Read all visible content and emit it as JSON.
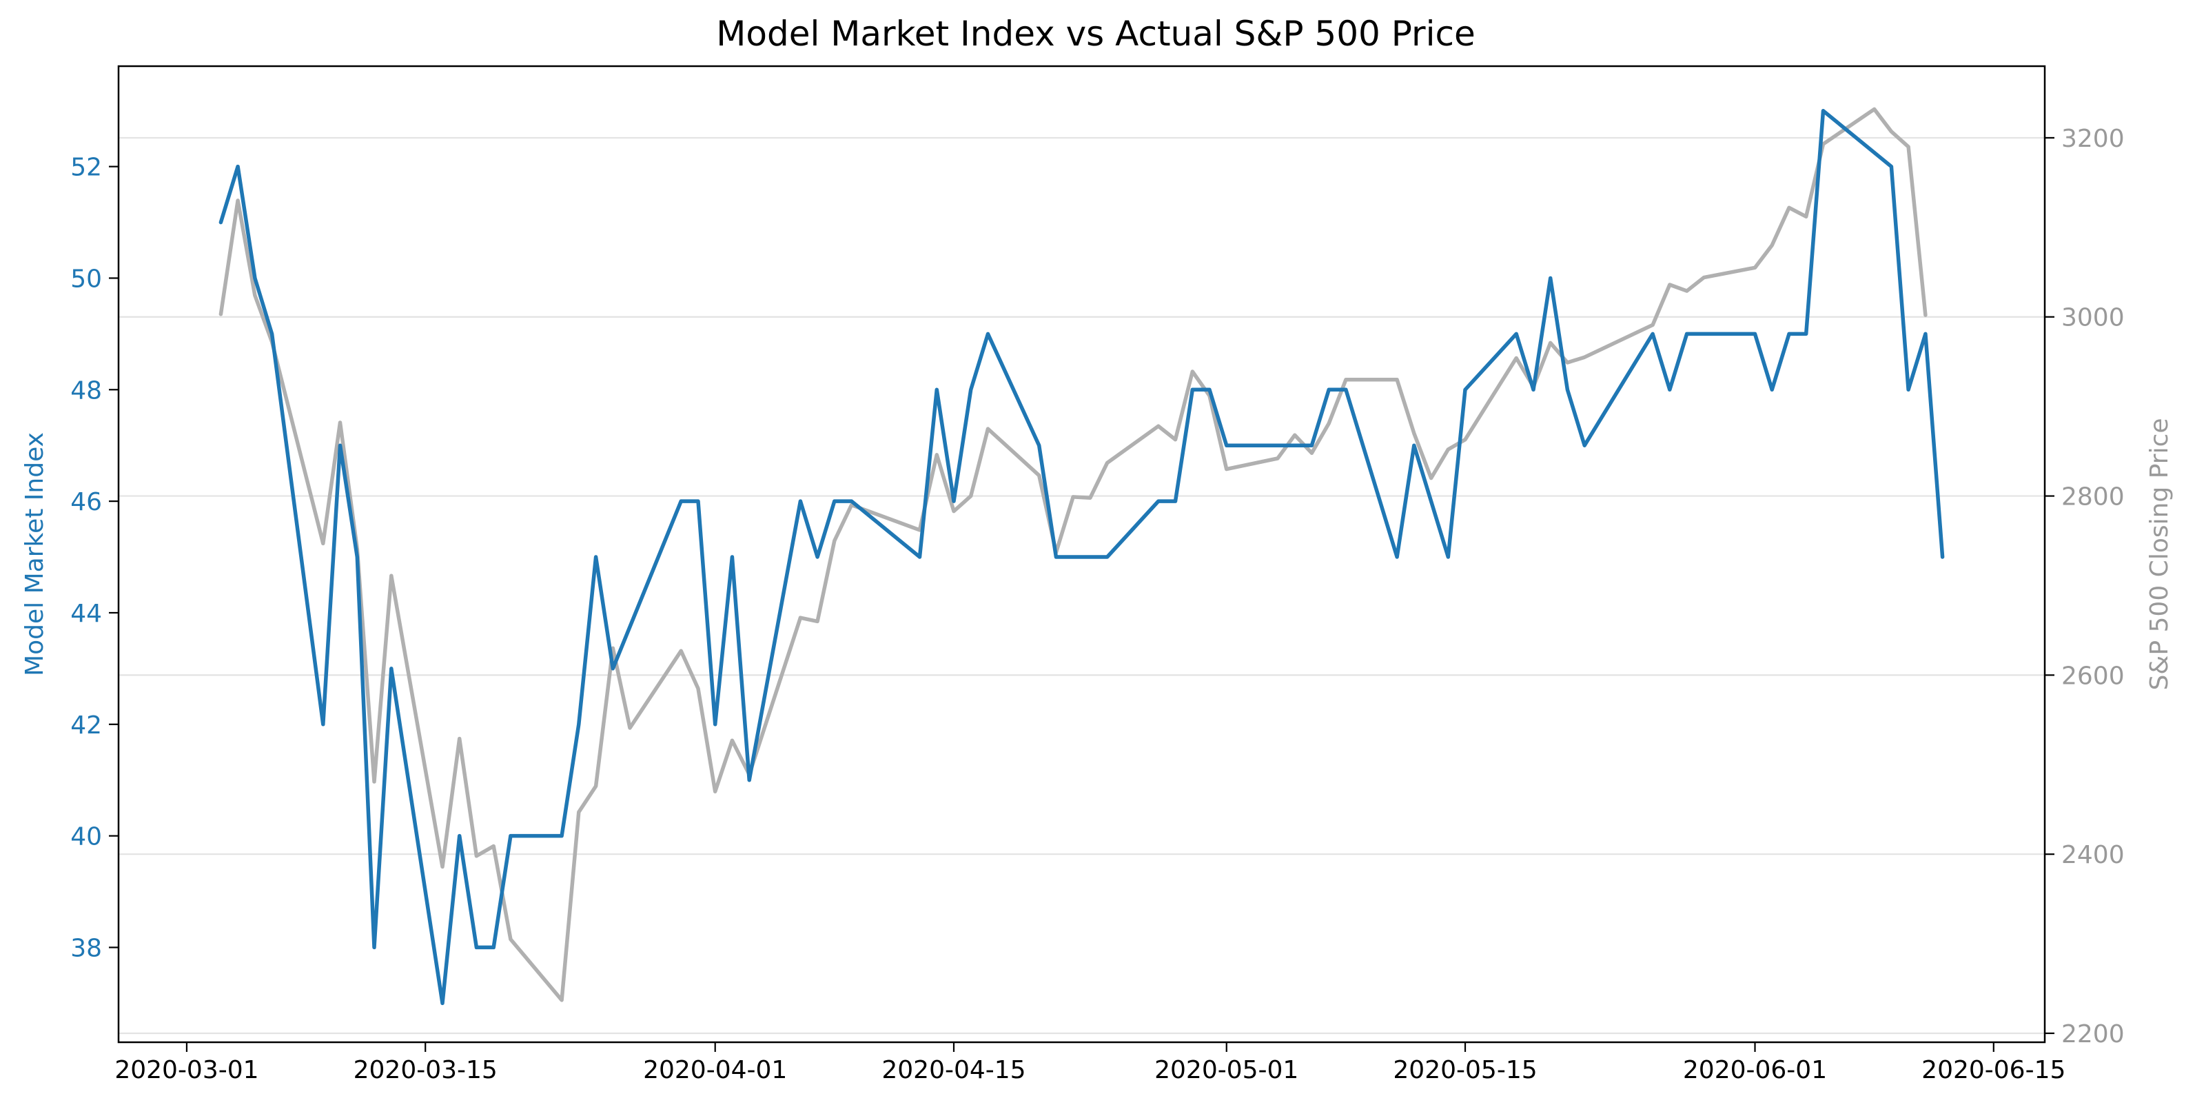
{
  "chart_data": {
    "type": "line",
    "title": "Model Market Index vs Actual S&P 500 Price",
    "xlabel": "",
    "x_tick_labels": [
      "2020-03-01",
      "2020-03-15",
      "2020-04-01",
      "2020-04-15",
      "2020-05-01",
      "2020-05-15",
      "2020-06-01",
      "2020-06-15"
    ],
    "xlim": [
      "2020-02-26",
      "2020-06-18"
    ],
    "y_left": {
      "label": "Model Market Index",
      "ylim": [
        36.3,
        53.8
      ],
      "ticks": [
        38,
        40,
        42,
        44,
        46,
        48,
        50,
        52
      ],
      "color": "#1f77b4"
    },
    "y_right": {
      "label": "S&P 500 Closing Price",
      "ylim": [
        2190,
        3280
      ],
      "ticks": [
        2200,
        2400,
        2600,
        2800,
        3000,
        3200
      ],
      "color": "#999999"
    },
    "grid": "horizontal, right axis ticks",
    "legend": "none",
    "series": [
      {
        "axis": "left",
        "color": "#1f77b4",
        "points": [
          [
            "2020-03-03",
            51
          ],
          [
            "2020-03-04",
            52
          ],
          [
            "2020-03-05",
            50
          ],
          [
            "2020-03-06",
            49
          ],
          [
            "2020-03-09",
            42
          ],
          [
            "2020-03-10",
            47
          ],
          [
            "2020-03-11",
            45
          ],
          [
            "2020-03-12",
            38
          ],
          [
            "2020-03-13",
            43
          ],
          [
            "2020-03-16",
            37
          ],
          [
            "2020-03-17",
            40
          ],
          [
            "2020-03-18",
            38
          ],
          [
            "2020-03-19",
            38
          ],
          [
            "2020-03-20",
            40
          ],
          [
            "2020-03-23",
            40
          ],
          [
            "2020-03-24",
            42
          ],
          [
            "2020-03-25",
            45
          ],
          [
            "2020-03-26",
            43
          ],
          [
            "2020-03-30",
            46
          ],
          [
            "2020-03-31",
            46
          ],
          [
            "2020-04-01",
            42
          ],
          [
            "2020-04-02",
            45
          ],
          [
            "2020-04-03",
            41
          ],
          [
            "2020-04-06",
            46
          ],
          [
            "2020-04-07",
            45
          ],
          [
            "2020-04-08",
            46
          ],
          [
            "2020-04-09",
            46
          ],
          [
            "2020-04-13",
            45
          ],
          [
            "2020-04-14",
            48
          ],
          [
            "2020-04-15",
            46
          ],
          [
            "2020-04-16",
            48
          ],
          [
            "2020-04-17",
            49
          ],
          [
            "2020-04-20",
            47
          ],
          [
            "2020-04-21",
            45
          ],
          [
            "2020-04-24",
            45
          ],
          [
            "2020-04-27",
            46
          ],
          [
            "2020-04-28",
            46
          ],
          [
            "2020-04-29",
            48
          ],
          [
            "2020-04-30",
            48
          ],
          [
            "2020-05-01",
            47
          ],
          [
            "2020-05-05",
            47
          ],
          [
            "2020-05-06",
            47
          ],
          [
            "2020-05-07",
            48
          ],
          [
            "2020-05-08",
            48
          ],
          [
            "2020-05-11",
            45
          ],
          [
            "2020-05-12",
            47
          ],
          [
            "2020-05-14",
            45
          ],
          [
            "2020-05-15",
            48
          ],
          [
            "2020-05-18",
            49
          ],
          [
            "2020-05-19",
            48
          ],
          [
            "2020-05-20",
            50
          ],
          [
            "2020-05-21",
            48
          ],
          [
            "2020-05-22",
            47
          ],
          [
            "2020-05-26",
            49
          ],
          [
            "2020-05-27",
            48
          ],
          [
            "2020-05-28",
            49
          ],
          [
            "2020-06-01",
            49
          ],
          [
            "2020-06-02",
            48
          ],
          [
            "2020-06-03",
            49
          ],
          [
            "2020-06-04",
            49
          ],
          [
            "2020-06-05",
            53
          ],
          [
            "2020-06-09",
            52
          ],
          [
            "2020-06-10",
            48
          ],
          [
            "2020-06-11",
            49
          ],
          [
            "2020-06-12",
            45
          ]
        ]
      },
      {
        "axis": "right",
        "color": "#b0b0b0",
        "points": [
          [
            "2020-03-03",
            3003
          ],
          [
            "2020-03-04",
            3130
          ],
          [
            "2020-03-05",
            3024
          ],
          [
            "2020-03-06",
            2972
          ],
          [
            "2020-03-09",
            2747
          ],
          [
            "2020-03-10",
            2882
          ],
          [
            "2020-03-11",
            2741
          ],
          [
            "2020-03-12",
            2481
          ],
          [
            "2020-03-13",
            2711
          ],
          [
            "2020-03-16",
            2386
          ],
          [
            "2020-03-17",
            2529
          ],
          [
            "2020-03-18",
            2398
          ],
          [
            "2020-03-19",
            2409
          ],
          [
            "2020-03-20",
            2305
          ],
          [
            "2020-03-23",
            2237
          ],
          [
            "2020-03-24",
            2447
          ],
          [
            "2020-03-25",
            2476
          ],
          [
            "2020-03-26",
            2630
          ],
          [
            "2020-03-27",
            2541
          ],
          [
            "2020-03-30",
            2627
          ],
          [
            "2020-03-31",
            2585
          ],
          [
            "2020-04-01",
            2470
          ],
          [
            "2020-04-02",
            2527
          ],
          [
            "2020-04-03",
            2489
          ],
          [
            "2020-04-06",
            2664
          ],
          [
            "2020-04-07",
            2660
          ],
          [
            "2020-04-08",
            2750
          ],
          [
            "2020-04-09",
            2790
          ],
          [
            "2020-04-13",
            2762
          ],
          [
            "2020-04-14",
            2846
          ],
          [
            "2020-04-15",
            2783
          ],
          [
            "2020-04-16",
            2800
          ],
          [
            "2020-04-17",
            2875
          ],
          [
            "2020-04-20",
            2823
          ],
          [
            "2020-04-21",
            2737
          ],
          [
            "2020-04-22",
            2799
          ],
          [
            "2020-04-23",
            2798
          ],
          [
            "2020-04-24",
            2837
          ],
          [
            "2020-04-27",
            2878
          ],
          [
            "2020-04-28",
            2863
          ],
          [
            "2020-04-29",
            2939
          ],
          [
            "2020-04-30",
            2912
          ],
          [
            "2020-05-01",
            2830
          ],
          [
            "2020-05-04",
            2842
          ],
          [
            "2020-05-05",
            2868
          ],
          [
            "2020-05-06",
            2848
          ],
          [
            "2020-05-07",
            2881
          ],
          [
            "2020-05-08",
            2930
          ],
          [
            "2020-05-11",
            2930
          ],
          [
            "2020-05-12",
            2870
          ],
          [
            "2020-05-13",
            2820
          ],
          [
            "2020-05-14",
            2852
          ],
          [
            "2020-05-15",
            2863
          ],
          [
            "2020-05-18",
            2954
          ],
          [
            "2020-05-19",
            2922
          ],
          [
            "2020-05-20",
            2971
          ],
          [
            "2020-05-21",
            2949
          ],
          [
            "2020-05-22",
            2955
          ],
          [
            "2020-05-26",
            2991
          ],
          [
            "2020-05-27",
            3036
          ],
          [
            "2020-05-28",
            3029
          ],
          [
            "2020-05-29",
            3044
          ],
          [
            "2020-06-01",
            3055
          ],
          [
            "2020-06-02",
            3080
          ],
          [
            "2020-06-03",
            3122
          ],
          [
            "2020-06-04",
            3112
          ],
          [
            "2020-06-05",
            3193
          ],
          [
            "2020-06-08",
            3232
          ],
          [
            "2020-06-09",
            3207
          ],
          [
            "2020-06-10",
            3190
          ],
          [
            "2020-06-11",
            3002
          ]
        ]
      }
    ]
  }
}
